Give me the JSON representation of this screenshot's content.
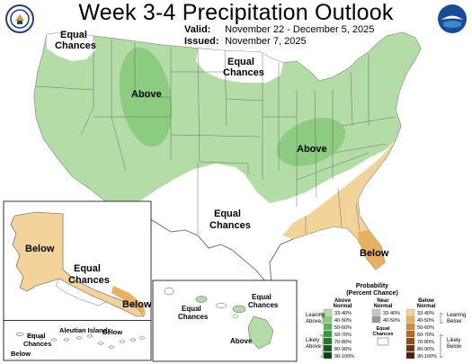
{
  "header": {
    "title": "Week 3-4 Precipitation Outlook",
    "valid_label": "Valid:",
    "valid_value": "November 22 - December 5, 2025",
    "issued_label": "Issued:",
    "issued_value": "November 7, 2025"
  },
  "logos": {
    "left": "doc-seal-icon",
    "right": "noaa-logo-icon"
  },
  "map": {
    "labels": {
      "nw_equal_1": "Equal",
      "nw_equal_2": "Chances",
      "above_west": "Above",
      "north_equal_1": "Equal",
      "north_equal_2": "Chances",
      "above_east": "Above",
      "south_equal_1": "Equal",
      "south_equal_2": "Chances",
      "below_florida": "Below"
    },
    "alaska": {
      "below_main": "Below",
      "equal_1": "Equal",
      "equal_2": "Chances",
      "below_se": "Below",
      "aleutian": "Aleutian Islands",
      "equal_ale_1": "Equal",
      "equal_ale_2": "Chances",
      "below_ale_left": "Below",
      "below_ale_right": "Below"
    },
    "hawaii": {
      "equal_left_1": "Equal",
      "equal_left_2": "Chances",
      "equal_right_1": "Equal",
      "equal_right_2": "Chances",
      "above": "Above"
    }
  },
  "legend": {
    "title_1": "Probability",
    "title_2": "(Percent Chance)",
    "above_header_1": "Above",
    "above_header_2": "Normal",
    "near_header_1": "Near",
    "near_header_2": "Normal",
    "below_header_1": "Below",
    "below_header_2": "Normal",
    "above_bins": [
      "33-40%",
      "40-50%",
      "50-60%",
      "60-70%",
      "70-80%",
      "80-90%",
      "90-100%"
    ],
    "near_bins": [
      "33-40%",
      "40-50%"
    ],
    "below_bins": [
      "33-40%",
      "40-50%",
      "50-60%",
      "60-70%",
      "70-80%",
      "80-90%",
      "90-100%"
    ],
    "equal_chances_1": "Equal",
    "equal_chances_2": "Chances",
    "leaning_above_1": "Leaning",
    "leaning_above_2": "Above",
    "likely_above_1": "Likely",
    "likely_above_2": "Above",
    "leaning_below_1": "Leaning",
    "leaning_below_2": "Below",
    "likely_below_1": "Likely",
    "likely_below_2": "Below"
  },
  "colors": {
    "above_33_40": "#b3dca6",
    "above_40_50": "#8ccc7f",
    "below_33_40": "#f2d49a",
    "below_40_50": "#e8b162",
    "ec": "#ffffff"
  }
}
